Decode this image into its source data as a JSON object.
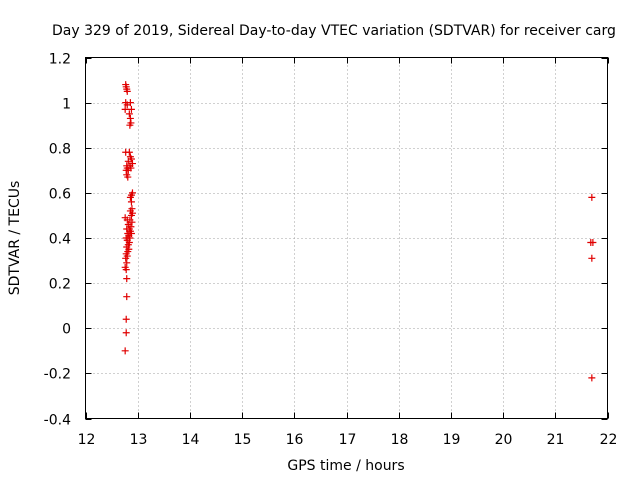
{
  "chart_data": {
    "type": "scatter",
    "title": "Day 329 of 2019, Sidereal Day-to-day VTEC variation (SDTVAR) for receiver carg",
    "xlabel": "GPS time / hours",
    "ylabel": "SDTVAR / TECUs",
    "xlim": [
      12,
      22
    ],
    "ylim": [
      -0.4,
      1.2
    ],
    "xticks": [
      12,
      13,
      14,
      15,
      16,
      17,
      18,
      19,
      20,
      21,
      22
    ],
    "xtick_labels": [
      "12",
      "13",
      "14",
      "15",
      "16",
      "17",
      "18",
      "19",
      "20",
      "21",
      "22"
    ],
    "yticks": [
      -0.4,
      -0.2,
      0,
      0.2,
      0.4,
      0.6,
      0.8,
      1.0,
      1.2
    ],
    "ytick_labels": [
      "-0.4",
      "-0.2",
      "0",
      "0.2",
      "0.4",
      "0.6",
      "0.8",
      "1",
      "1.2"
    ],
    "grid": true,
    "marker": "+",
    "color": "#e00000",
    "series": [
      {
        "name": "SDTVAR",
        "points": [
          [
            12.77,
            1.08
          ],
          [
            12.78,
            1.07
          ],
          [
            12.79,
            1.06
          ],
          [
            12.8,
            1.05
          ],
          [
            12.77,
            1.0
          ],
          [
            12.8,
            0.99
          ],
          [
            12.86,
            1.0
          ],
          [
            12.88,
            0.97
          ],
          [
            12.76,
            0.97
          ],
          [
            12.84,
            0.95
          ],
          [
            12.86,
            0.93
          ],
          [
            12.87,
            0.91
          ],
          [
            12.85,
            0.9
          ],
          [
            12.77,
            0.78
          ],
          [
            12.84,
            0.78
          ],
          [
            12.86,
            0.76
          ],
          [
            12.88,
            0.75
          ],
          [
            12.82,
            0.74
          ],
          [
            12.9,
            0.73
          ],
          [
            12.79,
            0.72
          ],
          [
            12.85,
            0.72
          ],
          [
            12.8,
            0.71
          ],
          [
            12.87,
            0.71
          ],
          [
            12.78,
            0.7
          ],
          [
            12.82,
            0.7
          ],
          [
            12.79,
            0.68
          ],
          [
            12.81,
            0.67
          ],
          [
            12.9,
            0.6
          ],
          [
            12.88,
            0.59
          ],
          [
            12.86,
            0.58
          ],
          [
            12.88,
            0.56
          ],
          [
            12.89,
            0.53
          ],
          [
            12.86,
            0.52
          ],
          [
            12.9,
            0.51
          ],
          [
            12.88,
            0.5
          ],
          [
            12.76,
            0.49
          ],
          [
            12.8,
            0.48
          ],
          [
            12.85,
            0.48
          ],
          [
            12.89,
            0.47
          ],
          [
            12.82,
            0.46
          ],
          [
            12.87,
            0.45
          ],
          [
            12.79,
            0.44
          ],
          [
            12.84,
            0.44
          ],
          [
            12.86,
            0.43
          ],
          [
            12.81,
            0.42
          ],
          [
            12.88,
            0.42
          ],
          [
            12.83,
            0.41
          ],
          [
            12.78,
            0.4
          ],
          [
            12.85,
            0.4
          ],
          [
            12.8,
            0.39
          ],
          [
            12.84,
            0.38
          ],
          [
            12.82,
            0.37
          ],
          [
            12.79,
            0.36
          ],
          [
            12.83,
            0.35
          ],
          [
            12.81,
            0.34
          ],
          [
            12.78,
            0.33
          ],
          [
            12.8,
            0.32
          ],
          [
            12.77,
            0.31
          ],
          [
            12.79,
            0.29
          ],
          [
            12.76,
            0.27
          ],
          [
            12.78,
            0.26
          ],
          [
            12.79,
            0.22
          ],
          [
            12.79,
            0.14
          ],
          [
            12.78,
            0.04
          ],
          [
            12.78,
            -0.02
          ],
          [
            12.76,
            -0.1
          ],
          [
            21.7,
            0.58
          ],
          [
            21.68,
            0.38
          ],
          [
            21.72,
            0.38
          ],
          [
            21.7,
            0.31
          ],
          [
            21.7,
            -0.22
          ]
        ]
      }
    ]
  }
}
